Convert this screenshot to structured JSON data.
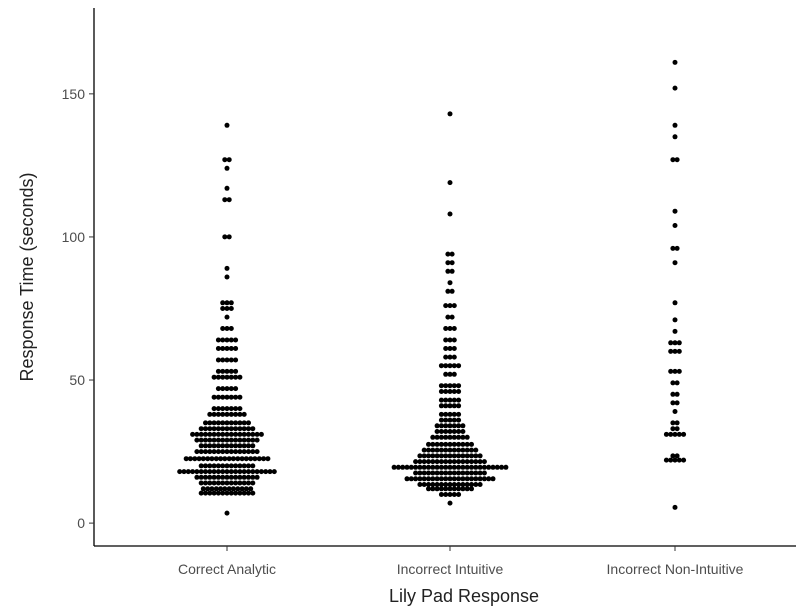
{
  "chart_data": {
    "type": "scatter",
    "subtype": "dotplot",
    "xlabel": "Lily Pad Response",
    "ylabel": "Response Time (seconds)",
    "ylim": [
      -8,
      180
    ],
    "yticks": [
      0,
      50,
      100,
      150
    ],
    "grid": false,
    "legend": "none",
    "point_color": "#000000",
    "categories": [
      "Correct Analytic",
      "Incorrect Intuitive",
      "Incorrect Non-Intuitive"
    ],
    "groups": [
      {
        "category": "Correct Analytic",
        "bins": [
          {
            "y": 3.5,
            "count": 1
          },
          {
            "y": 10.5,
            "count": 13
          },
          {
            "y": 12,
            "count": 12
          },
          {
            "y": 14,
            "count": 13
          },
          {
            "y": 16,
            "count": 15
          },
          {
            "y": 18,
            "count": 23
          },
          {
            "y": 20,
            "count": 13
          },
          {
            "y": 22.5,
            "count": 20
          },
          {
            "y": 25,
            "count": 15
          },
          {
            "y": 27,
            "count": 13
          },
          {
            "y": 29,
            "count": 15
          },
          {
            "y": 31,
            "count": 17
          },
          {
            "y": 33,
            "count": 13
          },
          {
            "y": 35,
            "count": 11
          },
          {
            "y": 38,
            "count": 9
          },
          {
            "y": 40,
            "count": 7
          },
          {
            "y": 44,
            "count": 7
          },
          {
            "y": 47,
            "count": 5
          },
          {
            "y": 51,
            "count": 7
          },
          {
            "y": 53,
            "count": 5
          },
          {
            "y": 57,
            "count": 5
          },
          {
            "y": 61,
            "count": 5
          },
          {
            "y": 64,
            "count": 5
          },
          {
            "y": 68,
            "count": 3
          },
          {
            "y": 72,
            "count": 1
          },
          {
            "y": 75,
            "count": 3
          },
          {
            "y": 77,
            "count": 3
          },
          {
            "y": 86,
            "count": 1
          },
          {
            "y": 89,
            "count": 1
          },
          {
            "y": 100,
            "count": 2
          },
          {
            "y": 113,
            "count": 2
          },
          {
            "y": 117,
            "count": 1
          },
          {
            "y": 124,
            "count": 1
          },
          {
            "y": 127,
            "count": 2
          },
          {
            "y": 139,
            "count": 1
          }
        ]
      },
      {
        "category": "Incorrect Intuitive",
        "bins": [
          {
            "y": 7,
            "count": 1
          },
          {
            "y": 10,
            "count": 5
          },
          {
            "y": 12,
            "count": 11
          },
          {
            "y": 13.5,
            "count": 15
          },
          {
            "y": 15.5,
            "count": 21
          },
          {
            "y": 17.5,
            "count": 17
          },
          {
            "y": 19.5,
            "count": 27
          },
          {
            "y": 21.5,
            "count": 17
          },
          {
            "y": 23.5,
            "count": 15
          },
          {
            "y": 25.5,
            "count": 13
          },
          {
            "y": 27.5,
            "count": 11
          },
          {
            "y": 30,
            "count": 9
          },
          {
            "y": 32,
            "count": 7
          },
          {
            "y": 34,
            "count": 7
          },
          {
            "y": 36,
            "count": 5
          },
          {
            "y": 38,
            "count": 5
          },
          {
            "y": 41,
            "count": 5
          },
          {
            "y": 43,
            "count": 5
          },
          {
            "y": 46,
            "count": 5
          },
          {
            "y": 48,
            "count": 5
          },
          {
            "y": 52,
            "count": 3
          },
          {
            "y": 55,
            "count": 5
          },
          {
            "y": 58,
            "count": 3
          },
          {
            "y": 61,
            "count": 3
          },
          {
            "y": 64,
            "count": 3
          },
          {
            "y": 68,
            "count": 3
          },
          {
            "y": 72,
            "count": 2
          },
          {
            "y": 76,
            "count": 3
          },
          {
            "y": 81,
            "count": 2
          },
          {
            "y": 84,
            "count": 1
          },
          {
            "y": 88,
            "count": 2
          },
          {
            "y": 91,
            "count": 2
          },
          {
            "y": 94,
            "count": 2
          },
          {
            "y": 108,
            "count": 1
          },
          {
            "y": 119,
            "count": 1
          },
          {
            "y": 143,
            "count": 1
          }
        ]
      },
      {
        "category": "Incorrect Non-Intuitive",
        "bins": [
          {
            "y": 5.5,
            "count": 1
          },
          {
            "y": 22,
            "count": 5
          },
          {
            "y": 23.5,
            "count": 2
          },
          {
            "y": 31,
            "count": 5
          },
          {
            "y": 33,
            "count": 2
          },
          {
            "y": 35,
            "count": 2
          },
          {
            "y": 39,
            "count": 1
          },
          {
            "y": 42,
            "count": 2
          },
          {
            "y": 45,
            "count": 2
          },
          {
            "y": 49,
            "count": 2
          },
          {
            "y": 53,
            "count": 3
          },
          {
            "y": 60,
            "count": 3
          },
          {
            "y": 63,
            "count": 3
          },
          {
            "y": 67,
            "count": 1
          },
          {
            "y": 71,
            "count": 1
          },
          {
            "y": 77,
            "count": 1
          },
          {
            "y": 91,
            "count": 1
          },
          {
            "y": 96,
            "count": 2
          },
          {
            "y": 104,
            "count": 1
          },
          {
            "y": 109,
            "count": 1
          },
          {
            "y": 127,
            "count": 2
          },
          {
            "y": 135,
            "count": 1
          },
          {
            "y": 139,
            "count": 1
          },
          {
            "y": 152,
            "count": 1
          },
          {
            "y": 161,
            "count": 1
          }
        ]
      }
    ]
  }
}
